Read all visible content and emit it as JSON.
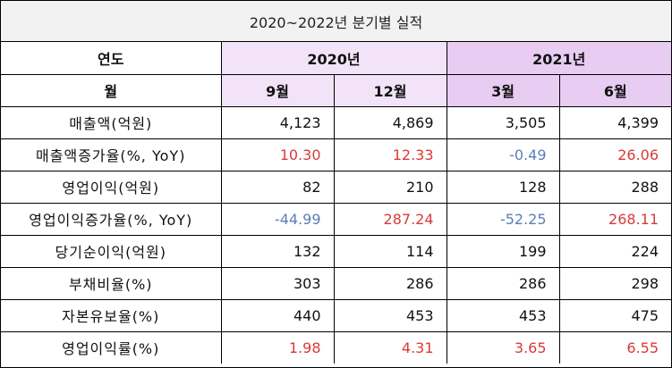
{
  "title": "2020~2022년 분기별 실적",
  "header": {
    "year_label": "연도",
    "month_label": "월",
    "years": [
      {
        "label": "2020년"
      },
      {
        "label": "2021년"
      }
    ],
    "months": [
      "9월",
      "12월",
      "3월",
      "6월"
    ]
  },
  "rows": [
    {
      "label": "매출액(억원)",
      "values": [
        "4,123",
        "4,869",
        "3,505",
        "4,399"
      ],
      "tones": [
        "plain",
        "plain",
        "plain",
        "plain"
      ]
    },
    {
      "label": "매출액증가율(%, YoY)",
      "values": [
        "10.30",
        "12.33",
        "-0.49",
        "26.06"
      ],
      "tones": [
        "pos",
        "pos",
        "neg",
        "pos"
      ]
    },
    {
      "label": "영업이익(억원)",
      "values": [
        "82",
        "210",
        "128",
        "288"
      ],
      "tones": [
        "plain",
        "plain",
        "plain",
        "plain"
      ]
    },
    {
      "label": "영업이익증가율(%, YoY)",
      "values": [
        "-44.99",
        "287.24",
        "-52.25",
        "268.11"
      ],
      "tones": [
        "neg",
        "pos",
        "neg",
        "pos"
      ]
    },
    {
      "label": "당기순이익(억원)",
      "values": [
        "132",
        "114",
        "199",
        "224"
      ],
      "tones": [
        "plain",
        "plain",
        "plain",
        "plain"
      ]
    },
    {
      "label": "부채비율(%)",
      "values": [
        "303",
        "286",
        "286",
        "298"
      ],
      "tones": [
        "plain",
        "plain",
        "plain",
        "plain"
      ]
    },
    {
      "label": "자본유보율(%)",
      "values": [
        "440",
        "453",
        "453",
        "475"
      ],
      "tones": [
        "plain",
        "plain",
        "plain",
        "plain"
      ]
    },
    {
      "label": "영업이익률(%)",
      "values": [
        "1.98",
        "4.31",
        "3.65",
        "6.55"
      ],
      "tones": [
        "pos",
        "pos",
        "pos",
        "pos"
      ]
    }
  ],
  "colors": {
    "negative": "#5b7fb4",
    "positive": "#d93a3a",
    "header_light": "#f2e3f8",
    "header_dark": "#e8ccf2",
    "title_bg": "#f2f2f2"
  }
}
